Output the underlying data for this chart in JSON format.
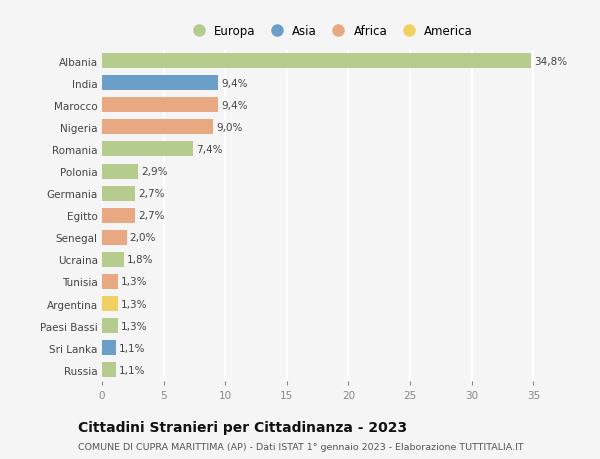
{
  "countries": [
    "Albania",
    "India",
    "Marocco",
    "Nigeria",
    "Romania",
    "Polonia",
    "Germania",
    "Egitto",
    "Senegal",
    "Ucraina",
    "Tunisia",
    "Argentina",
    "Paesi Bassi",
    "Sri Lanka",
    "Russia"
  ],
  "values": [
    34.8,
    9.4,
    9.4,
    9.0,
    7.4,
    2.9,
    2.7,
    2.7,
    2.0,
    1.8,
    1.3,
    1.3,
    1.3,
    1.1,
    1.1
  ],
  "labels": [
    "34,8%",
    "9,4%",
    "9,4%",
    "9,0%",
    "7,4%",
    "2,9%",
    "2,7%",
    "2,7%",
    "2,0%",
    "1,8%",
    "1,3%",
    "1,3%",
    "1,3%",
    "1,1%",
    "1,1%"
  ],
  "continents": [
    "Europa",
    "Asia",
    "Africa",
    "Africa",
    "Europa",
    "Europa",
    "Europa",
    "Africa",
    "Africa",
    "Europa",
    "Africa",
    "America",
    "Europa",
    "Asia",
    "Europa"
  ],
  "colors": {
    "Europa": "#b5cc8e",
    "Asia": "#6b9ec8",
    "Africa": "#e8a882",
    "America": "#f0d060"
  },
  "bg_color": "#f5f5f5",
  "grid_color": "#ffffff",
  "title": "Cittadini Stranieri per Cittadinanza - 2023",
  "subtitle": "COMUNE DI CUPRA MARITTIMA (AP) - Dati ISTAT 1° gennaio 2023 - Elaborazione TUTTITALIA.IT",
  "xlim": [
    0,
    37
  ],
  "xticks": [
    0,
    5,
    10,
    15,
    20,
    25,
    30,
    35
  ],
  "bar_height": 0.68,
  "label_fontsize": 7.5,
  "tick_fontsize": 7.5,
  "ytick_fontsize": 7.5,
  "title_fontsize": 10,
  "subtitle_fontsize": 6.8,
  "legend_fontsize": 8.5
}
